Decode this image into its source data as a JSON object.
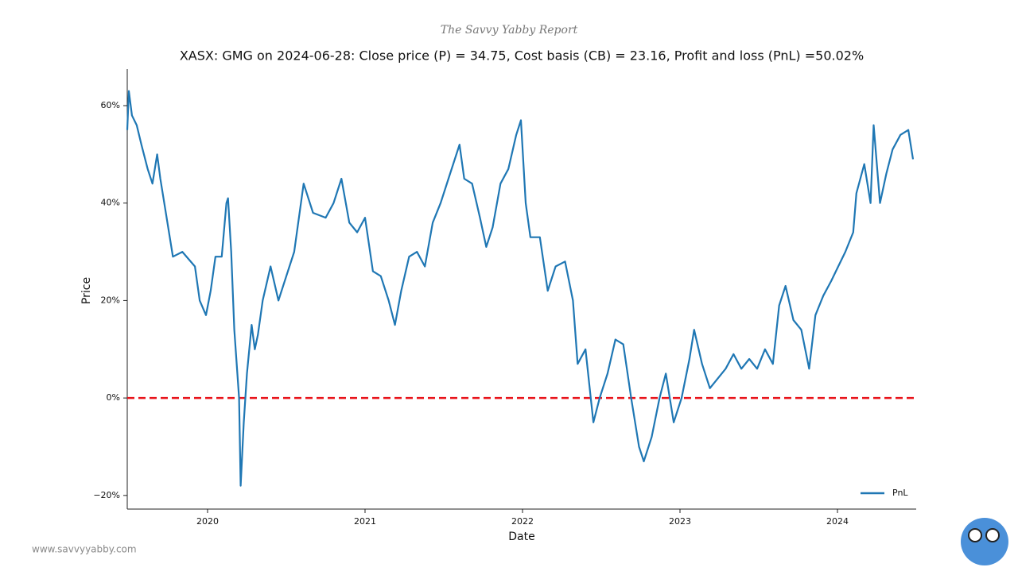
{
  "header": "The Savvy Yabby Report",
  "footer": "www.savvyyabby.com",
  "chart_data": {
    "type": "line",
    "title": "XASX: GMG on 2024-06-28: Close price (P) = 34.75, Cost basis (CB) = 23.16, Profit and loss (PnL) =50.02%",
    "x_label": "Date",
    "y_label": "Price",
    "xlim": [
      2019.49,
      2024.5
    ],
    "xticks": [
      2020,
      2021,
      2022,
      2023,
      2024
    ],
    "ylim": [
      -22.8,
      67.5
    ],
    "yticks": [
      {
        "value": -20,
        "label": "−20%"
      },
      {
        "value": 0,
        "label": "0%"
      },
      {
        "value": 20,
        "label": "20%"
      },
      {
        "value": 40,
        "label": "40%"
      },
      {
        "value": 60,
        "label": "60%"
      }
    ],
    "hline": {
      "value": 0,
      "color": "#e8141b"
    },
    "legend": "lower right",
    "x": [
      2019.49,
      2019.5,
      2019.52,
      2019.55,
      2019.58,
      2019.62,
      2019.65,
      2019.68,
      2019.7,
      2019.75,
      2019.78,
      2019.84,
      2019.92,
      2019.95,
      2019.99,
      2020.02,
      2020.05,
      2020.09,
      2020.12,
      2020.13,
      2020.15,
      2020.17,
      2020.2,
      2020.21,
      2020.23,
      2020.25,
      2020.28,
      2020.3,
      2020.32,
      2020.35,
      2020.4,
      2020.45,
      2020.5,
      2020.55,
      2020.61,
      2020.67,
      2020.75,
      2020.8,
      2020.85,
      2020.9,
      2020.95,
      2021.0,
      2021.05,
      2021.1,
      2021.15,
      2021.19,
      2021.23,
      2021.28,
      2021.33,
      2021.38,
      2021.43,
      2021.48,
      2021.53,
      2021.6,
      2021.63,
      2021.68,
      2021.73,
      2021.77,
      2021.81,
      2021.86,
      2021.91,
      2021.96,
      2021.99,
      2022.02,
      2022.05,
      2022.11,
      2022.16,
      2022.21,
      2022.27,
      2022.32,
      2022.35,
      2022.4,
      2022.45,
      2022.49,
      2022.54,
      2022.59,
      2022.64,
      2022.69,
      2022.74,
      2022.77,
      2022.82,
      2022.87,
      2022.91,
      2022.96,
      2023.01,
      2023.06,
      2023.09,
      2023.14,
      2023.19,
      2023.24,
      2023.29,
      2023.34,
      2023.39,
      2023.44,
      2023.49,
      2023.54,
      2023.59,
      2023.63,
      2023.67,
      2023.72,
      2023.77,
      2023.82,
      2023.86,
      2023.91,
      2023.96,
      2023.99,
      2024.05,
      2024.1,
      2024.12,
      2024.17,
      2024.21,
      2024.23,
      2024.27,
      2024.31,
      2024.35,
      2024.4,
      2024.45,
      2024.48
    ],
    "series": [
      {
        "name": "PnL",
        "color": "#1f77b4",
        "values": [
          55,
          63,
          58,
          56,
          52,
          47,
          44,
          50,
          45,
          35,
          29,
          30,
          27,
          20,
          17,
          22,
          29,
          29,
          40,
          41,
          30,
          14,
          0,
          -18,
          -5,
          5,
          15,
          10,
          13,
          20,
          27,
          20,
          25,
          30,
          44,
          38,
          37,
          40,
          45,
          36,
          34,
          37,
          26,
          25,
          20,
          15,
          22,
          29,
          30,
          27,
          36,
          40,
          45,
          52,
          45,
          44,
          37,
          31,
          35,
          44,
          47,
          54,
          57,
          40,
          33,
          33,
          22,
          27,
          28,
          20,
          7,
          10,
          -5,
          0,
          5,
          12,
          11,
          0,
          -10,
          -13,
          -8,
          0,
          5,
          -5,
          0,
          8,
          14,
          7,
          2,
          4,
          6,
          9,
          6,
          8,
          6,
          10,
          7,
          19,
          23,
          16,
          14,
          6,
          17,
          21,
          24,
          26,
          30,
          34,
          42,
          48,
          40,
          56,
          40,
          46,
          51,
          54,
          55,
          49
        ]
      }
    ]
  }
}
